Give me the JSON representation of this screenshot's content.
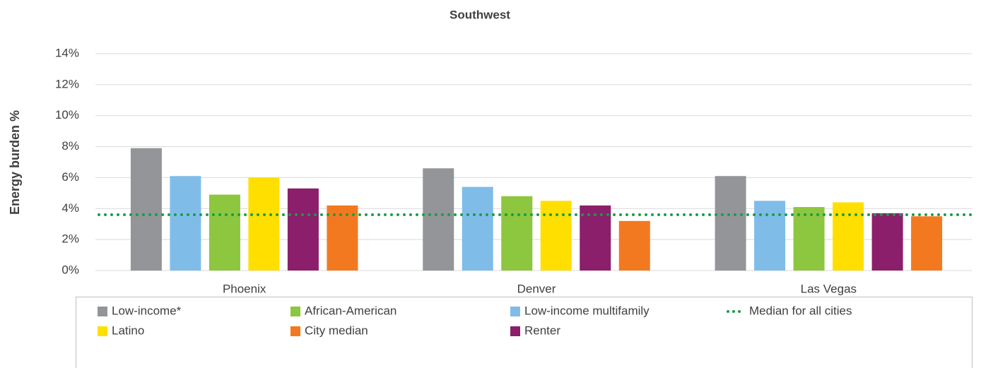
{
  "chart_data": {
    "type": "bar",
    "title": "Southwest",
    "y_label": "Energy burden %",
    "categories": [
      "Phoenix",
      "Denver",
      "Las Vegas"
    ],
    "series": [
      {
        "name": "Low-income*",
        "color": "#939598",
        "values": [
          7.9,
          6.6,
          6.1
        ]
      },
      {
        "name": "Low-income multifamily",
        "color": "#7fbde8",
        "values": [
          6.1,
          5.4,
          4.5
        ]
      },
      {
        "name": "African-American",
        "color": "#8dc63f",
        "values": [
          4.9,
          4.8,
          4.1
        ]
      },
      {
        "name": "Latino",
        "color": "#ffdf00",
        "values": [
          6.0,
          4.5,
          4.4
        ]
      },
      {
        "name": "Renter",
        "color": "#8b1f6b",
        "values": [
          5.3,
          4.2,
          3.7
        ]
      },
      {
        "name": "City median",
        "color": "#f37921",
        "values": [
          4.2,
          3.2,
          3.5
        ]
      }
    ],
    "median_line": {
      "name": "Median for all cities",
      "color": "#1a9b48",
      "value": 3.6
    },
    "ylim": [
      0,
      14
    ],
    "yticks": [
      {
        "value": 0,
        "label": "0%"
      },
      {
        "value": 2,
        "label": "2%"
      },
      {
        "value": 4,
        "label": "4%"
      },
      {
        "value": 6,
        "label": "6%"
      },
      {
        "value": 8,
        "label": "8%"
      },
      {
        "value": 10,
        "label": "10%"
      },
      {
        "value": 12,
        "label": "12%"
      },
      {
        "value": 14,
        "label": "14%"
      }
    ],
    "grid": true
  }
}
